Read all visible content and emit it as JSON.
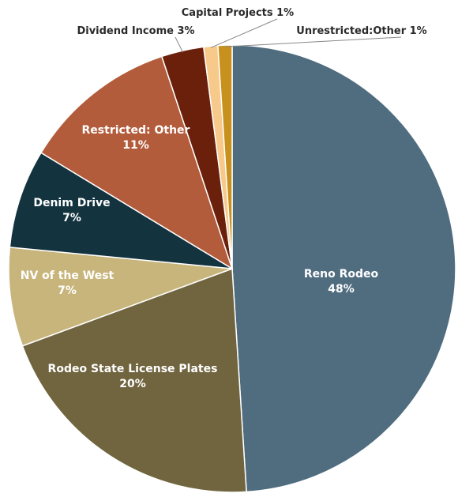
{
  "chart_data": {
    "type": "pie",
    "slices": [
      {
        "label": "Reno Rodeo",
        "value": 48,
        "pct": "48%",
        "color": "#506d80"
      },
      {
        "label": "Rodeo State License Plates",
        "value": 20,
        "pct": "20%",
        "color": "#716540"
      },
      {
        "label": "NV of the West",
        "value": 7,
        "pct": "7%",
        "color": "#c8b57c"
      },
      {
        "label": "Denim Drive",
        "value": 7,
        "pct": "7%",
        "color": "#13333f"
      },
      {
        "label": "Restricted: Other",
        "value": 11,
        "pct": "11%",
        "color": "#b35c3c"
      },
      {
        "label": "Dividend Income",
        "value": 3,
        "pct": "3%",
        "color": "#6b200c"
      },
      {
        "label": "Capital Projects",
        "value": 1,
        "pct": "1%",
        "color": "#f7c98a"
      },
      {
        "label": "Unrestricted:Other",
        "value": 1,
        "pct": "1%",
        "color": "#c8901c"
      }
    ],
    "legend": "none",
    "data_labels": "category-and-percent"
  }
}
